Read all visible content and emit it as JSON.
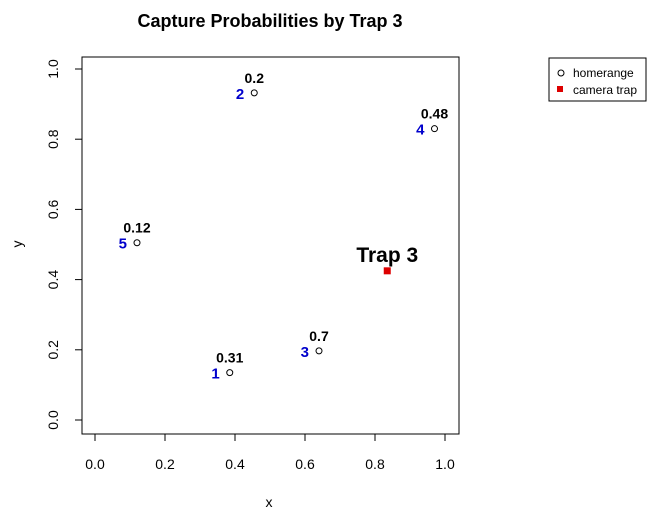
{
  "chart_data": {
    "type": "scatter",
    "title": "Capture Probabilities by Trap 3",
    "xlabel": "x",
    "ylabel": "y",
    "xlim": [
      0,
      1
    ],
    "ylim": [
      0,
      1
    ],
    "xticks": [
      0.0,
      0.2,
      0.4,
      0.6,
      0.8,
      1.0
    ],
    "yticks": [
      0.0,
      0.2,
      0.4,
      0.6,
      0.8,
      1.0
    ],
    "xtick_labels": [
      "0.0",
      "0.2",
      "0.4",
      "0.6",
      "0.8",
      "1.0"
    ],
    "ytick_labels": [
      "0.0",
      "0.2",
      "0.4",
      "0.6",
      "0.8",
      "1.0"
    ],
    "grid": false,
    "legend_placement": "top-right, outside plot",
    "homerange_color": "#000000",
    "id_label_color": "#0000cc",
    "trap_color": "#dd0000",
    "homeranges": [
      {
        "id": "1",
        "x": 0.385,
        "y": 0.135,
        "probability": "0.31"
      },
      {
        "id": "2",
        "x": 0.455,
        "y": 0.932,
        "probability": "0.2"
      },
      {
        "id": "3",
        "x": 0.64,
        "y": 0.197,
        "probability": "0.7"
      },
      {
        "id": "4",
        "x": 0.97,
        "y": 0.83,
        "probability": "0.48"
      },
      {
        "id": "5",
        "x": 0.12,
        "y": 0.505,
        "probability": "0.12"
      }
    ],
    "camera_trap": {
      "x": 0.835,
      "y": 0.425,
      "label": "Trap 3"
    },
    "legend": [
      {
        "label": "homerange",
        "symbol": "open-circle"
      },
      {
        "label": "camera trap",
        "symbol": "filled-square"
      }
    ]
  }
}
